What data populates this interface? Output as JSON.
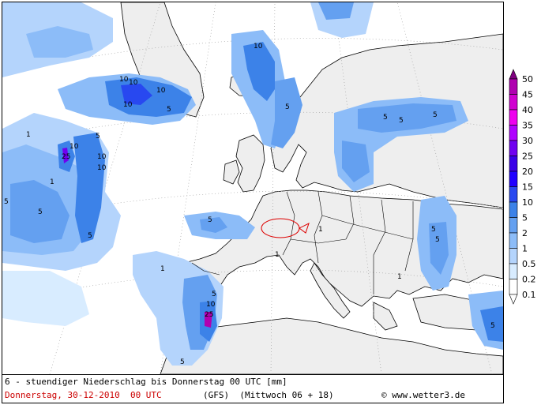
{
  "caption": {
    "line1": "6 - stuendiger Niederschlag bis Donnerstag 00 UTC [mm]",
    "date": "Donnerstag, 30-12-2010  00 UTC",
    "model": "(GFS)  (Mittwoch 06 + 18)",
    "copyright": "© www.wetter3.de"
  },
  "colors": {
    "sea": "#ffffff",
    "land": "#eeeeee",
    "border": "#000000",
    "graticule": "#999999",
    "marker": "#dd0000"
  },
  "legend": {
    "levels": [
      "50",
      "45",
      "40",
      "35",
      "30",
      "25",
      "20",
      "15",
      "10",
      "5",
      "2",
      "1",
      "0.5",
      "0.2",
      "0.1"
    ],
    "colors": [
      "#800080",
      "#b000b0",
      "#d000d0",
      "#ee00ee",
      "#b000ff",
      "#7000f0",
      "#3a00e8",
      "#2000ff",
      "#2848f0",
      "#3c82e8",
      "#64a0f0",
      "#8cbcf8",
      "#b4d4fc",
      "#d8ecff",
      "#ffffff"
    ]
  },
  "labels": [
    "1",
    "2",
    "5",
    "10",
    "25"
  ]
}
